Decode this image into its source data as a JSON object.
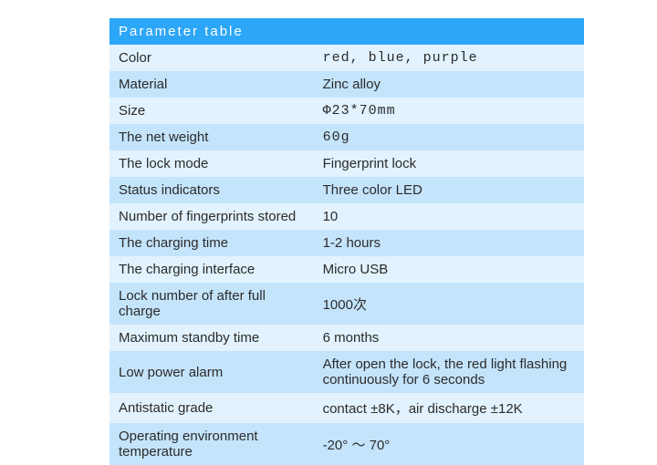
{
  "table": {
    "title": "Parameter  table",
    "header_bg": "#2ca6f7",
    "header_color": "#ffffff",
    "row_bg_even": "#e2f2fe",
    "row_bg_odd": "#c4e4fc",
    "text_color": "#2b2b2b",
    "label_col_width_pct": 43,
    "title_fontsize": 15,
    "cell_fontsize": 15,
    "rows": [
      {
        "label": "Color",
        "value": "red, blue, purple",
        "mono": true
      },
      {
        "label": "Material",
        "value": "Zinc alloy"
      },
      {
        "label": "Size",
        "value": "Φ23*70mm",
        "mono": true
      },
      {
        "label": "The net weight",
        "value": "60g",
        "mono": true
      },
      {
        "label": "The lock mode",
        "value": "Fingerprint lock"
      },
      {
        "label": "Status indicators",
        "value": "Three color LED"
      },
      {
        "label": "Number of fingerprints stored",
        "value": "10"
      },
      {
        "label": "The charging time",
        "value": "1-2 hours"
      },
      {
        "label": "The charging interface",
        "value": "Micro USB"
      },
      {
        "label": "Lock number of after full charge",
        "value": "1000次"
      },
      {
        "label": "Maximum standby time",
        "value": "6 months"
      },
      {
        "label": "Low power alarm",
        "value": "After open the lock, the red light flashing continuously for 6 seconds"
      },
      {
        "label": "Antistatic  grade",
        "value": "contact ±8K，air discharge ±12K"
      },
      {
        "label": "Operating environment temperature",
        "value": "-20° ～ 70°"
      }
    ]
  }
}
